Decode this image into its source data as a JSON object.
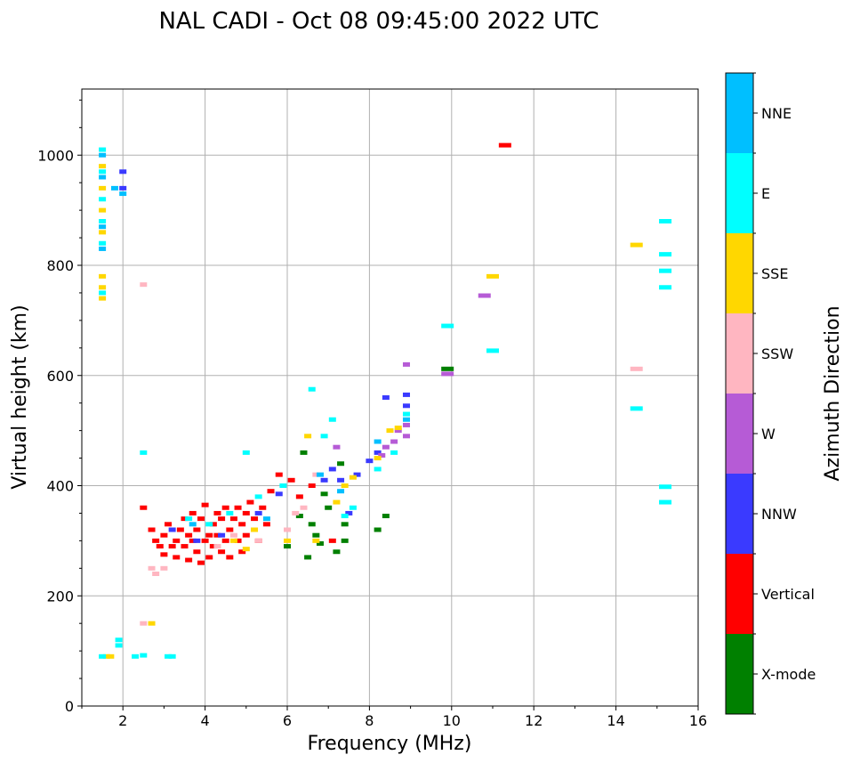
{
  "chart_data": {
    "type": "scatter",
    "title": "NAL CADI - Oct 08 09:45:00 2022 UTC",
    "xlabel": "Frequency (MHz)",
    "ylabel": "Virtual height (km)",
    "xlim": [
      1,
      16
    ],
    "ylim": [
      0,
      1120
    ],
    "xticks": [
      2,
      4,
      6,
      8,
      10,
      12,
      14,
      16
    ],
    "xtick_labels": [
      "2",
      "4",
      "6",
      "8",
      "10",
      "12",
      "14",
      "16"
    ],
    "yticks": [
      0,
      200,
      400,
      600,
      800,
      1000
    ],
    "ytick_labels": [
      "0",
      "200",
      "400",
      "600",
      "800",
      "1000"
    ],
    "grid": true,
    "colorbar": {
      "label": "Azimuth Direction",
      "categories": [
        {
          "name": "X-mode",
          "color": "#008000"
        },
        {
          "name": "Vertical",
          "color": "#ff0000"
        },
        {
          "name": "NNW",
          "color": "#3a3aff"
        },
        {
          "name": "W",
          "color": "#b65bd6"
        },
        {
          "name": "SSW",
          "color": "#ffb6c1"
        },
        {
          "name": "SSE",
          "color": "#ffd700"
        },
        {
          "name": "E",
          "color": "#00ffff"
        },
        {
          "name": "NNE",
          "color": "#00bfff"
        }
      ]
    },
    "series": [
      {
        "name": "X-mode",
        "points": [
          [
            6.0,
            290
          ],
          [
            6.3,
            345
          ],
          [
            6.5,
            270
          ],
          [
            6.6,
            330
          ],
          [
            6.7,
            310
          ],
          [
            6.8,
            295
          ],
          [
            7.0,
            360
          ],
          [
            7.2,
            280
          ],
          [
            7.4,
            300
          ],
          [
            7.4,
            330
          ],
          [
            8.2,
            320
          ],
          [
            8.4,
            345
          ],
          [
            9.9,
            612
          ],
          [
            6.4,
            460
          ],
          [
            7.3,
            440
          ],
          [
            6.9,
            385
          ]
        ]
      },
      {
        "name": "Vertical",
        "points": [
          [
            2.5,
            360
          ],
          [
            2.7,
            320
          ],
          [
            2.8,
            300
          ],
          [
            2.9,
            290
          ],
          [
            3.0,
            275
          ],
          [
            3.0,
            310
          ],
          [
            3.1,
            330
          ],
          [
            3.2,
            290
          ],
          [
            3.3,
            300
          ],
          [
            3.3,
            270
          ],
          [
            3.4,
            320
          ],
          [
            3.5,
            340
          ],
          [
            3.5,
            290
          ],
          [
            3.6,
            310
          ],
          [
            3.6,
            265
          ],
          [
            3.7,
            300
          ],
          [
            3.7,
            350
          ],
          [
            3.8,
            320
          ],
          [
            3.8,
            280
          ],
          [
            3.9,
            260
          ],
          [
            3.9,
            340
          ],
          [
            4.0,
            300
          ],
          [
            4.0,
            365
          ],
          [
            4.1,
            310
          ],
          [
            4.1,
            270
          ],
          [
            4.2,
            330
          ],
          [
            4.2,
            290
          ],
          [
            4.3,
            350
          ],
          [
            4.3,
            310
          ],
          [
            4.4,
            280
          ],
          [
            4.4,
            340
          ],
          [
            4.5,
            360
          ],
          [
            4.5,
            300
          ],
          [
            4.6,
            320
          ],
          [
            4.6,
            270
          ],
          [
            4.7,
            340
          ],
          [
            4.8,
            300
          ],
          [
            4.8,
            360
          ],
          [
            4.9,
            330
          ],
          [
            4.9,
            280
          ],
          [
            5.0,
            350
          ],
          [
            5.0,
            310
          ],
          [
            5.1,
            370
          ],
          [
            5.2,
            340
          ],
          [
            5.3,
            300
          ],
          [
            5.4,
            360
          ],
          [
            5.5,
            330
          ],
          [
            5.6,
            390
          ],
          [
            5.8,
            420
          ],
          [
            6.1,
            410
          ],
          [
            6.3,
            380
          ],
          [
            6.6,
            400
          ],
          [
            7.1,
            300
          ],
          [
            11.3,
            1018
          ]
        ]
      },
      {
        "name": "NNW",
        "points": [
          [
            2.0,
            970
          ],
          [
            2.0,
            940
          ],
          [
            3.2,
            320
          ],
          [
            3.8,
            300
          ],
          [
            4.4,
            310
          ],
          [
            5.3,
            350
          ],
          [
            5.8,
            385
          ],
          [
            6.9,
            410
          ],
          [
            7.1,
            430
          ],
          [
            7.3,
            410
          ],
          [
            7.5,
            350
          ],
          [
            7.7,
            420
          ],
          [
            8.0,
            445
          ],
          [
            8.2,
            460
          ],
          [
            8.4,
            560
          ],
          [
            8.9,
            545
          ],
          [
            8.9,
            565
          ]
        ]
      },
      {
        "name": "W",
        "points": [
          [
            8.3,
            455
          ],
          [
            8.4,
            470
          ],
          [
            8.6,
            480
          ],
          [
            8.7,
            500
          ],
          [
            8.9,
            490
          ],
          [
            8.9,
            510
          ],
          [
            8.9,
            620
          ],
          [
            10.8,
            745
          ],
          [
            9.9,
            603
          ],
          [
            7.2,
            470
          ]
        ]
      },
      {
        "name": "SSW",
        "points": [
          [
            2.5,
            765
          ],
          [
            2.5,
            150
          ],
          [
            2.7,
            250
          ],
          [
            2.8,
            240
          ],
          [
            3.0,
            250
          ],
          [
            4.3,
            290
          ],
          [
            4.7,
            310
          ],
          [
            5.3,
            300
          ],
          [
            6.0,
            320
          ],
          [
            6.2,
            350
          ],
          [
            6.4,
            360
          ],
          [
            6.7,
            420
          ],
          [
            14.5,
            612
          ]
        ]
      },
      {
        "name": "SSE",
        "points": [
          [
            1.5,
            980
          ],
          [
            1.5,
            940
          ],
          [
            1.5,
            900
          ],
          [
            1.5,
            860
          ],
          [
            1.5,
            780
          ],
          [
            1.5,
            760
          ],
          [
            1.5,
            740
          ],
          [
            1.6,
            90
          ],
          [
            1.7,
            90
          ],
          [
            2.7,
            150
          ],
          [
            4.7,
            300
          ],
          [
            5.0,
            285
          ],
          [
            5.2,
            320
          ],
          [
            6.0,
            300
          ],
          [
            6.5,
            490
          ],
          [
            6.7,
            300
          ],
          [
            7.2,
            370
          ],
          [
            7.4,
            400
          ],
          [
            7.6,
            415
          ],
          [
            8.2,
            450
          ],
          [
            8.5,
            500
          ],
          [
            8.7,
            505
          ],
          [
            11.0,
            780
          ],
          [
            14.5,
            837
          ]
        ]
      },
      {
        "name": "E",
        "points": [
          [
            1.5,
            1010
          ],
          [
            1.5,
            970
          ],
          [
            1.5,
            920
          ],
          [
            1.5,
            880
          ],
          [
            1.5,
            840
          ],
          [
            1.5,
            750
          ],
          [
            1.5,
            90
          ],
          [
            1.9,
            120
          ],
          [
            1.9,
            110
          ],
          [
            2.3,
            90
          ],
          [
            2.5,
            92
          ],
          [
            2.5,
            460
          ],
          [
            3.1,
            90
          ],
          [
            3.2,
            90
          ],
          [
            3.6,
            340
          ],
          [
            4.1,
            330
          ],
          [
            4.6,
            350
          ],
          [
            5.0,
            460
          ],
          [
            5.3,
            380
          ],
          [
            5.9,
            400
          ],
          [
            6.6,
            575
          ],
          [
            6.9,
            490
          ],
          [
            7.1,
            520
          ],
          [
            7.4,
            345
          ],
          [
            7.6,
            360
          ],
          [
            8.2,
            430
          ],
          [
            8.6,
            460
          ],
          [
            8.9,
            530
          ],
          [
            9.9,
            690
          ],
          [
            11.0,
            645
          ],
          [
            14.5,
            540
          ],
          [
            15.2,
            880
          ],
          [
            15.2,
            820
          ],
          [
            15.2,
            790
          ],
          [
            15.2,
            760
          ],
          [
            15.2,
            398
          ],
          [
            15.2,
            370
          ]
        ]
      },
      {
        "name": "NNE",
        "points": [
          [
            1.5,
            1000
          ],
          [
            1.5,
            960
          ],
          [
            1.5,
            870
          ],
          [
            1.5,
            830
          ],
          [
            2.0,
            930
          ],
          [
            1.8,
            940
          ],
          [
            3.7,
            330
          ],
          [
            5.5,
            340
          ],
          [
            6.8,
            420
          ],
          [
            7.3,
            390
          ],
          [
            8.9,
            520
          ],
          [
            8.2,
            480
          ]
        ]
      }
    ]
  }
}
